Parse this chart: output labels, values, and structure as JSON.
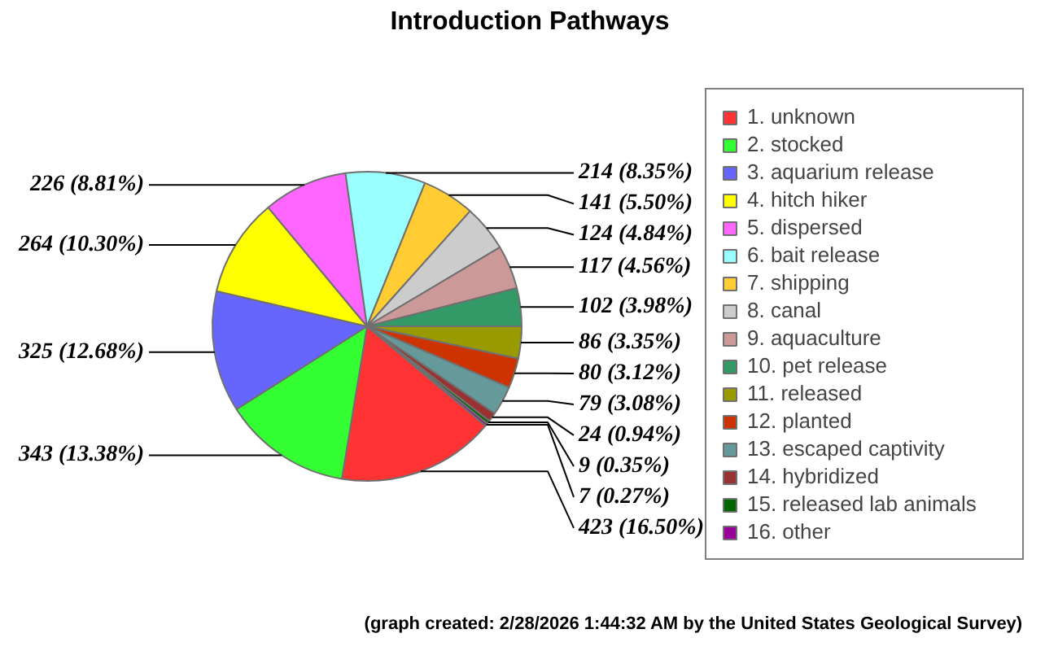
{
  "chart_data": {
    "type": "pie",
    "title": "Introduction Pathways",
    "categories": [
      "1. unknown",
      "2. stocked",
      "3. aquarium release",
      "4. hitch hiker",
      "5. dispersed",
      "6. bait release",
      "7. shipping",
      "8. canal",
      "9. aquaculture",
      "10. pet release",
      "11. released",
      "12. planted",
      "13. escaped captivity",
      "14. hybridized",
      "15. released lab animals",
      "16. other"
    ],
    "values": [
      423,
      343,
      325,
      264,
      226,
      214,
      141,
      124,
      117,
      102,
      86,
      80,
      79,
      24,
      9,
      7
    ],
    "colors": [
      "#ff3333",
      "#33ff33",
      "#6666ff",
      "#ffff00",
      "#ff66ff",
      "#99ffff",
      "#ffcc33",
      "#cccccc",
      "#cc9999",
      "#339966",
      "#999900",
      "#cc3300",
      "#669999",
      "#993333",
      "#006600",
      "#990099"
    ],
    "data_labels": true,
    "value_labels": [
      "423 (16.50%)",
      "343 (13.38%)",
      "325 (12.68%)",
      "264 (10.30%)",
      "226 (8.81%)",
      "214 (8.35%)",
      "141 (5.50%)",
      "124 (4.84%)",
      "117 (4.56%)",
      "102 (3.98%)",
      "86 (3.35%)",
      "80 (3.12%)",
      "79 (3.08%)",
      "24 (0.94%)",
      "9 (0.35%)",
      "7 (0.27%)"
    ],
    "legend": "right",
    "annotations": [
      "(graph created: 2/28/2026 1:44:32 AM by the United States Geological Survey)"
    ]
  }
}
